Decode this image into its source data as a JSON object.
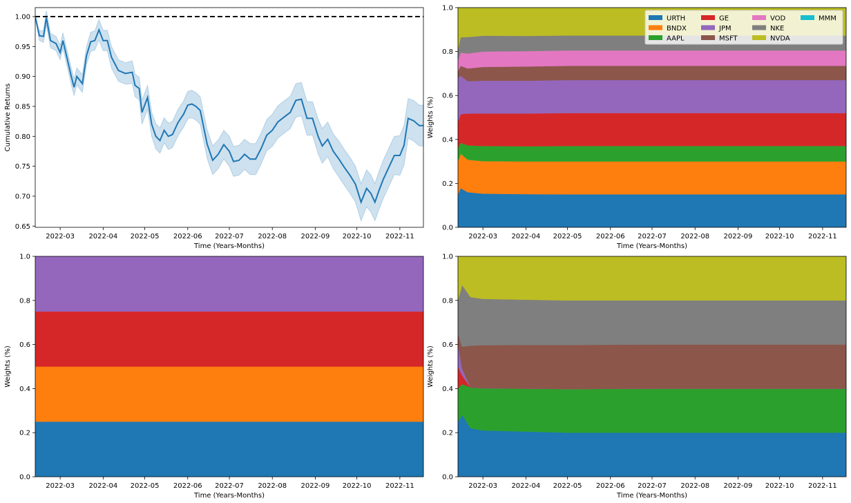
{
  "colors": {
    "URTH": "#1f77b4",
    "BNDX": "#ff7f0e",
    "AAPL": "#2ca02c",
    "GE": "#d62728",
    "JPM": "#9467bd",
    "MSFT": "#8c564b",
    "VOD": "#e377c2",
    "NKE": "#7f7f7f",
    "NVDA": "#bcbd22",
    "MMM": "#17becf",
    "band": "#1f77b4",
    "reference_line": "#000000"
  },
  "chart_data": [
    {
      "type": "line",
      "xlabel": "Time (Years-Months)",
      "ylabel": "Cumulative Returns",
      "x_ticks": [
        "2022-03",
        "2022-04",
        "2022-05",
        "2022-06",
        "2022-07",
        "2022-08",
        "2022-09",
        "2022-10",
        "2022-11"
      ],
      "y_ticks": [
        "0.65",
        "0.70",
        "0.75",
        "0.80",
        "0.85",
        "0.90",
        "0.95",
        "1.00"
      ],
      "xlim": [
        "2022-02-11",
        "2022-11-18"
      ],
      "ylim": [
        0.648,
        1.015
      ],
      "reference_line": 1.0,
      "grid": false,
      "series": [
        {
          "values": [
            [
              "2022-02-11",
              1.0
            ],
            [
              "2022-02-14",
              0.968
            ],
            [
              "2022-02-17",
              0.967
            ],
            [
              "2022-02-19",
              0.998
            ],
            [
              "2022-02-22",
              0.96
            ],
            [
              "2022-02-26",
              0.955
            ],
            [
              "2022-03-01",
              0.94
            ],
            [
              "2022-03-03",
              0.96
            ],
            [
              "2022-03-06",
              0.93
            ],
            [
              "2022-03-09",
              0.9
            ],
            [
              "2022-03-11",
              0.882
            ],
            [
              "2022-03-13",
              0.9
            ],
            [
              "2022-03-17",
              0.888
            ],
            [
              "2022-03-20",
              0.935
            ],
            [
              "2022-03-23",
              0.958
            ],
            [
              "2022-03-26",
              0.96
            ],
            [
              "2022-03-29",
              0.978
            ],
            [
              "2022-04-01",
              0.96
            ],
            [
              "2022-04-04",
              0.96
            ],
            [
              "2022-04-07",
              0.932
            ],
            [
              "2022-04-12",
              0.91
            ],
            [
              "2022-04-17",
              0.905
            ],
            [
              "2022-04-22",
              0.907
            ],
            [
              "2022-04-24",
              0.885
            ],
            [
              "2022-04-27",
              0.88
            ],
            [
              "2022-04-29",
              0.84
            ],
            [
              "2022-05-03",
              0.865
            ],
            [
              "2022-05-06",
              0.82
            ],
            [
              "2022-05-09",
              0.8
            ],
            [
              "2022-05-12",
              0.793
            ],
            [
              "2022-05-15",
              0.81
            ],
            [
              "2022-05-18",
              0.8
            ],
            [
              "2022-05-21",
              0.803
            ],
            [
              "2022-05-25",
              0.823
            ],
            [
              "2022-05-29",
              0.837
            ],
            [
              "2022-06-01",
              0.852
            ],
            [
              "2022-06-04",
              0.854
            ],
            [
              "2022-06-07",
              0.85
            ],
            [
              "2022-06-10",
              0.843
            ],
            [
              "2022-06-15",
              0.787
            ],
            [
              "2022-06-19",
              0.76
            ],
            [
              "2022-06-23",
              0.77
            ],
            [
              "2022-06-27",
              0.786
            ],
            [
              "2022-07-01",
              0.775
            ],
            [
              "2022-07-04",
              0.758
            ],
            [
              "2022-07-08",
              0.76
            ],
            [
              "2022-07-12",
              0.77
            ],
            [
              "2022-07-16",
              0.762
            ],
            [
              "2022-07-20",
              0.762
            ],
            [
              "2022-07-24",
              0.78
            ],
            [
              "2022-07-28",
              0.802
            ],
            [
              "2022-08-01",
              0.81
            ],
            [
              "2022-08-05",
              0.824
            ],
            [
              "2022-08-10",
              0.833
            ],
            [
              "2022-08-14",
              0.84
            ],
            [
              "2022-08-18",
              0.86
            ],
            [
              "2022-08-22",
              0.862
            ],
            [
              "2022-08-26",
              0.83
            ],
            [
              "2022-08-30",
              0.83
            ],
            [
              "2022-09-03",
              0.8
            ],
            [
              "2022-09-06",
              0.784
            ],
            [
              "2022-09-10",
              0.795
            ],
            [
              "2022-09-14",
              0.775
            ],
            [
              "2022-09-18",
              0.762
            ],
            [
              "2022-09-22",
              0.748
            ],
            [
              "2022-09-26",
              0.735
            ],
            [
              "2022-09-30",
              0.72
            ],
            [
              "2022-10-04",
              0.69
            ],
            [
              "2022-10-08",
              0.713
            ],
            [
              "2022-10-11",
              0.705
            ],
            [
              "2022-10-14",
              0.69
            ],
            [
              "2022-10-17",
              0.71
            ],
            [
              "2022-10-20",
              0.728
            ],
            [
              "2022-10-24",
              0.748
            ],
            [
              "2022-10-28",
              0.768
            ],
            [
              "2022-11-01",
              0.768
            ],
            [
              "2022-11-04",
              0.785
            ],
            [
              "2022-11-07",
              0.83
            ],
            [
              "2022-11-11",
              0.826
            ],
            [
              "2022-11-15",
              0.818
            ],
            [
              "2022-11-18",
              0.818
            ]
          ],
          "band_halfwidth": [
            0.0,
            0.008,
            0.01,
            0.012,
            0.012,
            0.012,
            0.012,
            0.013,
            0.013,
            0.014,
            0.014,
            0.014,
            0.015,
            0.015,
            0.016,
            0.016,
            0.017,
            0.017,
            0.017,
            0.018,
            0.018,
            0.018,
            0.019,
            0.019,
            0.019,
            0.02,
            0.02,
            0.02,
            0.021,
            0.021,
            0.021,
            0.022,
            0.022,
            0.022,
            0.022,
            0.023,
            0.023,
            0.023,
            0.023,
            0.024,
            0.024,
            0.024,
            0.024,
            0.025,
            0.025,
            0.025,
            0.025,
            0.026,
            0.026,
            0.026,
            0.026,
            0.027,
            0.027,
            0.027,
            0.027,
            0.028,
            0.028,
            0.028,
            0.028,
            0.029,
            0.029,
            0.029,
            0.029,
            0.03,
            0.03,
            0.03,
            0.03,
            0.031,
            0.031,
            0.031,
            0.031,
            0.032,
            0.032,
            0.032,
            0.032,
            0.033,
            0.033,
            0.033,
            0.034,
            0.034,
            0.034
          ]
        }
      ]
    },
    {
      "type": "area",
      "stacked": true,
      "xlabel": "Time (Years-Months)",
      "ylabel": "Weights (%)",
      "x_ticks": [
        "2022-03",
        "2022-04",
        "2022-05",
        "2022-06",
        "2022-07",
        "2022-08",
        "2022-09",
        "2022-10",
        "2022-11"
      ],
      "y_ticks": [
        "0.0",
        "0.2",
        "0.4",
        "0.6",
        "0.8",
        "1.0"
      ],
      "xlim": [
        "2022-02-11",
        "2022-11-18"
      ],
      "ylim": [
        0,
        1
      ],
      "legend": {
        "position": "top-right",
        "columns": 4,
        "order": [
          "URTH",
          "BNDX",
          "AAPL",
          "GE",
          "JPM",
          "MSFT",
          "VOD",
          "NKE",
          "NVDA",
          "MMM"
        ]
      },
      "x": [
        "2022-02-11",
        "2022-02-13",
        "2022-02-18",
        "2022-03-01",
        "2022-04-01",
        "2022-05-01",
        "2022-07-01",
        "2022-09-01",
        "2022-11-18"
      ],
      "series": [
        {
          "name": "URTH",
          "values": [
            0.15,
            0.178,
            0.16,
            0.153,
            0.151,
            0.15,
            0.15,
            0.15,
            0.15
          ]
        },
        {
          "name": "BNDX",
          "values": [
            0.15,
            0.157,
            0.148,
            0.148,
            0.149,
            0.15,
            0.15,
            0.15,
            0.15
          ]
        },
        {
          "name": "AAPL",
          "values": [
            0.06,
            0.05,
            0.065,
            0.069,
            0.069,
            0.07,
            0.07,
            0.07,
            0.07
          ]
        },
        {
          "name": "GE",
          "values": [
            0.12,
            0.13,
            0.145,
            0.148,
            0.149,
            0.15,
            0.15,
            0.15,
            0.15
          ]
        },
        {
          "name": "JPM",
          "values": [
            0.2,
            0.175,
            0.147,
            0.149,
            0.149,
            0.15,
            0.15,
            0.15,
            0.15
          ]
        },
        {
          "name": "MSFT",
          "values": [
            0.03,
            0.045,
            0.058,
            0.063,
            0.065,
            0.065,
            0.065,
            0.065,
            0.065
          ]
        },
        {
          "name": "VOD",
          "values": [
            0.05,
            0.06,
            0.068,
            0.07,
            0.07,
            0.07,
            0.07,
            0.07,
            0.07
          ]
        },
        {
          "name": "NKE",
          "values": [
            0.05,
            0.07,
            0.075,
            0.072,
            0.069,
            0.068,
            0.068,
            0.068,
            0.068
          ]
        },
        {
          "name": "NVDA",
          "values": [
            0.19,
            0.135,
            0.134,
            0.128,
            0.129,
            0.127,
            0.127,
            0.127,
            0.127
          ]
        },
        {
          "name": "MMM",
          "values": [
            0.0,
            0.0,
            0.0,
            0.0,
            0.0,
            0.0,
            0.0,
            0.0,
            0.0
          ]
        }
      ]
    },
    {
      "type": "area",
      "stacked": true,
      "xlabel": "Time (Years-Months)",
      "ylabel": "Weights (%)",
      "x_ticks": [
        "2022-03",
        "2022-04",
        "2022-05",
        "2022-06",
        "2022-07",
        "2022-08",
        "2022-09",
        "2022-10",
        "2022-11"
      ],
      "y_ticks": [
        "0.0",
        "0.2",
        "0.4",
        "0.6",
        "0.8",
        "1.0"
      ],
      "xlim": [
        "2022-02-11",
        "2022-11-18"
      ],
      "ylim": [
        0,
        1
      ],
      "x": [
        "2022-02-11",
        "2022-11-18"
      ],
      "series": [
        {
          "name": "URTH",
          "values": [
            0.25,
            0.25
          ]
        },
        {
          "name": "BNDX",
          "values": [
            0.25,
            0.25
          ]
        },
        {
          "name": "GE",
          "values": [
            0.25,
            0.25
          ]
        },
        {
          "name": "JPM",
          "values": [
            0.25,
            0.25
          ]
        }
      ]
    },
    {
      "type": "area",
      "stacked": true,
      "xlabel": "Time (Years-Months)",
      "ylabel": "Weights (%)",
      "x_ticks": [
        "2022-03",
        "2022-04",
        "2022-05",
        "2022-06",
        "2022-07",
        "2022-08",
        "2022-09",
        "2022-10",
        "2022-11"
      ],
      "y_ticks": [
        "0.0",
        "0.2",
        "0.4",
        "0.6",
        "0.8",
        "1.0"
      ],
      "xlim": [
        "2022-02-11",
        "2022-11-18"
      ],
      "ylim": [
        0,
        1
      ],
      "x": [
        "2022-02-11",
        "2022-02-14",
        "2022-02-20",
        "2022-03-01",
        "2022-04-01",
        "2022-05-01",
        "2022-07-01",
        "2022-09-01",
        "2022-11-18"
      ],
      "series": [
        {
          "name": "URTH",
          "values": [
            0.25,
            0.28,
            0.22,
            0.21,
            0.205,
            0.2,
            0.2,
            0.2,
            0.2
          ]
        },
        {
          "name": "AAPL",
          "values": [
            0.15,
            0.14,
            0.185,
            0.192,
            0.195,
            0.198,
            0.2,
            0.2,
            0.2
          ]
        },
        {
          "name": "GE",
          "values": [
            0.1,
            0.04,
            0.0,
            0.0,
            0.0,
            0.0,
            0.0,
            0.0,
            0.0
          ]
        },
        {
          "name": "JPM",
          "values": [
            0.1,
            0.03,
            0.0,
            0.0,
            0.0,
            0.0,
            0.0,
            0.0,
            0.0
          ]
        },
        {
          "name": "MSFT",
          "values": [
            0.05,
            0.1,
            0.19,
            0.195,
            0.198,
            0.2,
            0.2,
            0.2,
            0.2
          ]
        },
        {
          "name": "NKE",
          "values": [
            0.15,
            0.28,
            0.22,
            0.21,
            0.205,
            0.202,
            0.2,
            0.2,
            0.2
          ]
        },
        {
          "name": "NVDA",
          "values": [
            0.2,
            0.13,
            0.185,
            0.193,
            0.197,
            0.2,
            0.2,
            0.2,
            0.2
          ]
        }
      ]
    }
  ]
}
